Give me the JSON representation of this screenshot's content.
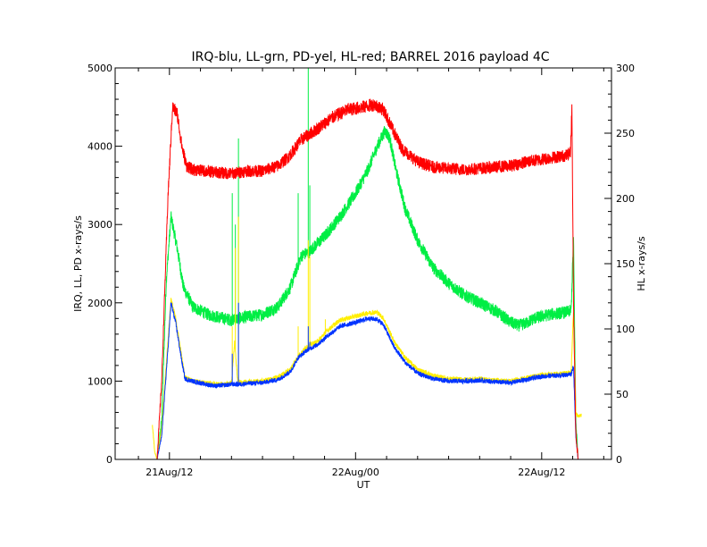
{
  "chart_data": {
    "type": "line",
    "title": "IRQ-blu, LL-grn, PD-yel, HL-red; BARREL 2016 payload 4C",
    "xlabel": "UT",
    "ylabel_left": "IRQ, LL, PD x-rays/s",
    "ylabel_right": "HL x-rays/s",
    "x_unit": "hours since 2016-08-21 00:00 UT",
    "xlim": [
      8.5,
      40.5
    ],
    "ylim_left": [
      0,
      5000
    ],
    "ylim_right": [
      0,
      300
    ],
    "x_ticks": [
      {
        "x": 12,
        "label": "21Aug/12"
      },
      {
        "x": 24,
        "label": "22Aug/00"
      },
      {
        "x": 36,
        "label": "22Aug/12"
      }
    ],
    "y_ticks_left": [
      0,
      1000,
      2000,
      3000,
      4000,
      5000
    ],
    "y_ticks_right": [
      0,
      50,
      100,
      150,
      200,
      250,
      300
    ],
    "grid": false,
    "series": [
      {
        "name": "LL",
        "color": "#00ee44",
        "axis": "left",
        "points": [
          [
            11.2,
            0
          ],
          [
            11.5,
            500
          ],
          [
            11.8,
            2300
          ],
          [
            12.1,
            3100
          ],
          [
            12.5,
            2700
          ],
          [
            12.9,
            2200
          ],
          [
            13.5,
            1950
          ],
          [
            14.5,
            1850
          ],
          [
            15.5,
            1800
          ],
          [
            16,
            1780
          ],
          [
            16.4,
            1800
          ],
          [
            17,
            1820
          ],
          [
            18,
            1850
          ],
          [
            19,
            1950
          ],
          [
            19.8,
            2200
          ],
          [
            20.5,
            2600
          ],
          [
            21,
            2650
          ],
          [
            22,
            2850
          ],
          [
            23,
            3100
          ],
          [
            24,
            3400
          ],
          [
            24.8,
            3700
          ],
          [
            25.4,
            4000
          ],
          [
            25.9,
            4200
          ],
          [
            26.2,
            4100
          ],
          [
            26.6,
            3700
          ],
          [
            27.2,
            3200
          ],
          [
            28,
            2800
          ],
          [
            29,
            2450
          ],
          [
            30,
            2250
          ],
          [
            31,
            2100
          ],
          [
            32,
            2000
          ],
          [
            33,
            1900
          ],
          [
            34,
            1750
          ],
          [
            34.5,
            1710
          ],
          [
            35,
            1740
          ],
          [
            35.5,
            1800
          ],
          [
            36.5,
            1850
          ],
          [
            37.6,
            1880
          ],
          [
            37.9,
            1900
          ],
          [
            38.05,
            2850
          ],
          [
            38.2,
            500
          ],
          [
            38.35,
            0
          ]
        ]
      },
      {
        "name": "PD",
        "color": "#ffee00",
        "axis": "left",
        "points": [
          [
            10.9,
            450
          ],
          [
            11.05,
            100
          ],
          [
            11.2,
            0
          ],
          [
            11.5,
            400
          ],
          [
            11.9,
            1500
          ],
          [
            12.1,
            2050
          ],
          [
            12.4,
            1800
          ],
          [
            12.8,
            1300
          ],
          [
            13,
            1050
          ],
          [
            13.5,
            1000
          ],
          [
            14.3,
            980
          ],
          [
            15,
            960
          ],
          [
            15.6,
            960
          ],
          [
            16,
            980
          ],
          [
            16.2,
            1500
          ],
          [
            16.4,
            1000
          ],
          [
            16.6,
            980
          ],
          [
            17,
            990
          ],
          [
            18,
            1000
          ],
          [
            19,
            1050
          ],
          [
            19.8,
            1150
          ],
          [
            20.3,
            1320
          ],
          [
            20.9,
            1450
          ],
          [
            21.5,
            1500
          ],
          [
            22.2,
            1650
          ],
          [
            23,
            1780
          ],
          [
            24,
            1830
          ],
          [
            24.8,
            1870
          ],
          [
            25.4,
            1880
          ],
          [
            25.8,
            1800
          ],
          [
            26.5,
            1500
          ],
          [
            27.2,
            1300
          ],
          [
            28,
            1150
          ],
          [
            29,
            1070
          ],
          [
            30,
            1030
          ],
          [
            31,
            1020
          ],
          [
            32,
            1030
          ],
          [
            33,
            1010
          ],
          [
            34,
            1000
          ],
          [
            35,
            1040
          ],
          [
            36,
            1080
          ],
          [
            37.6,
            1100
          ],
          [
            37.9,
            1120
          ],
          [
            38.05,
            1900
          ],
          [
            38.2,
            600
          ],
          [
            38.35,
            550
          ],
          [
            38.55,
            560
          ]
        ]
      },
      {
        "name": "IRQ",
        "color": "#0033ff",
        "axis": "left",
        "points": [
          [
            11.2,
            0
          ],
          [
            11.5,
            300
          ],
          [
            11.9,
            1400
          ],
          [
            12.1,
            2000
          ],
          [
            12.4,
            1750
          ],
          [
            12.8,
            1250
          ],
          [
            13,
            1030
          ],
          [
            13.5,
            1000
          ],
          [
            14.3,
            960
          ],
          [
            15,
            940
          ],
          [
            15.6,
            950
          ],
          [
            16,
            960
          ],
          [
            16.6,
            960
          ],
          [
            17,
            970
          ],
          [
            18,
            980
          ],
          [
            19,
            1020
          ],
          [
            19.8,
            1120
          ],
          [
            20.3,
            1300
          ],
          [
            20.9,
            1400
          ],
          [
            21.5,
            1460
          ],
          [
            22.2,
            1580
          ],
          [
            23,
            1700
          ],
          [
            24,
            1750
          ],
          [
            24.8,
            1800
          ],
          [
            25.4,
            1790
          ],
          [
            25.8,
            1720
          ],
          [
            26.5,
            1430
          ],
          [
            27.2,
            1240
          ],
          [
            28,
            1100
          ],
          [
            29,
            1030
          ],
          [
            30,
            1000
          ],
          [
            31,
            1000
          ],
          [
            32,
            1010
          ],
          [
            33,
            990
          ],
          [
            34,
            980
          ],
          [
            35,
            1020
          ],
          [
            36,
            1060
          ],
          [
            37.6,
            1080
          ],
          [
            37.9,
            1090
          ],
          [
            38.05,
            1200
          ],
          [
            38.2,
            300
          ],
          [
            38.35,
            0
          ]
        ]
      },
      {
        "name": "HL",
        "color": "#ff0000",
        "axis": "right",
        "points": [
          [
            11.2,
            0
          ],
          [
            11.5,
            60
          ],
          [
            11.9,
            200
          ],
          [
            12.2,
            270
          ],
          [
            12.5,
            265
          ],
          [
            12.8,
            240
          ],
          [
            13.1,
            225
          ],
          [
            13.5,
            222
          ],
          [
            15,
            220
          ],
          [
            16,
            219
          ],
          [
            17,
            221
          ],
          [
            18,
            221
          ],
          [
            19,
            225
          ],
          [
            19.7,
            232
          ],
          [
            20.5,
            245
          ],
          [
            21.5,
            253
          ],
          [
            22.5,
            262
          ],
          [
            23.5,
            268
          ],
          [
            24.5,
            270
          ],
          [
            25.2,
            272
          ],
          [
            25.8,
            268
          ],
          [
            26.3,
            255
          ],
          [
            27,
            238
          ],
          [
            28,
            228
          ],
          [
            29,
            224
          ],
          [
            30,
            223
          ],
          [
            31,
            222
          ],
          [
            32,
            223
          ],
          [
            33,
            224
          ],
          [
            34,
            225
          ],
          [
            35,
            228
          ],
          [
            36,
            230
          ],
          [
            37.6,
            233
          ],
          [
            37.85,
            235
          ],
          [
            37.95,
            270
          ],
          [
            38.05,
            120
          ],
          [
            38.2,
            20
          ],
          [
            38.35,
            0
          ]
        ]
      }
    ],
    "spikes": [
      {
        "series": "LL",
        "x": 16.05,
        "value": 3400
      },
      {
        "series": "LL",
        "x": 16.25,
        "value": 3000
      },
      {
        "series": "LL",
        "x": 16.45,
        "value": 4100
      },
      {
        "series": "LL",
        "x": 20.3,
        "value": 3400
      },
      {
        "series": "LL",
        "x": 20.95,
        "value": 5000
      },
      {
        "series": "LL",
        "x": 21.05,
        "value": 3500
      },
      {
        "series": "PD",
        "x": 16.05,
        "value": 1700
      },
      {
        "series": "PD",
        "x": 16.25,
        "value": 2700
      },
      {
        "series": "PD",
        "x": 16.45,
        "value": 3100
      },
      {
        "series": "PD",
        "x": 20.3,
        "value": 1700
      },
      {
        "series": "PD",
        "x": 20.95,
        "value": 2800
      },
      {
        "series": "PD",
        "x": 21.05,
        "value": 2600
      },
      {
        "series": "PD",
        "x": 22.05,
        "value": 1790
      },
      {
        "series": "IRQ",
        "x": 16.05,
        "value": 1350
      },
      {
        "series": "IRQ",
        "x": 16.45,
        "value": 2000
      },
      {
        "series": "IRQ",
        "x": 20.95,
        "value": 1700
      },
      {
        "series": "IRQ",
        "x": 21.05,
        "value": 1500
      }
    ],
    "noise": {
      "LL": 80,
      "PD": 30,
      "IRQ": 30,
      "HL": 9
    }
  }
}
